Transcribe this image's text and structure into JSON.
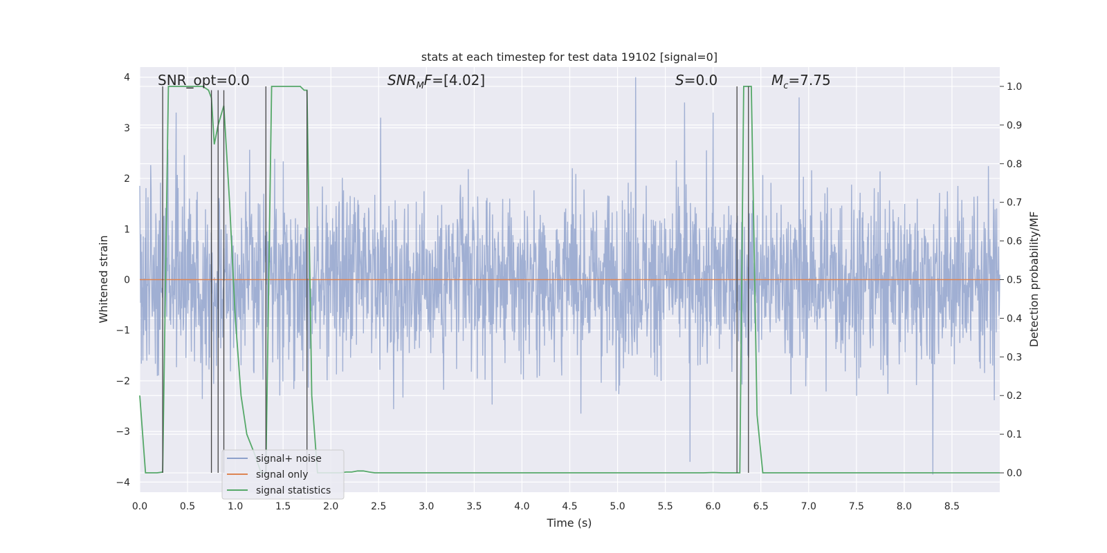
{
  "chart_data": {
    "type": "line",
    "title": "stats at each timestep for test data 19102 [signal=0]",
    "xlabel": "Time (s)",
    "ylabel": "Whitened strain",
    "y2label": "Detection probability/MF",
    "xlim": [
      0.0,
      9.0
    ],
    "ylim": [
      -4.2,
      4.2
    ],
    "y2lim": [
      -0.05,
      1.05
    ],
    "xticks": [
      "0.0",
      "0.5",
      "1.0",
      "1.5",
      "2.0",
      "2.5",
      "3.0",
      "3.5",
      "4.0",
      "4.5",
      "5.0",
      "5.5",
      "6.0",
      "6.5",
      "7.0",
      "7.5",
      "8.0",
      "8.5"
    ],
    "yticks": [
      "4",
      "3",
      "2",
      "1",
      "0",
      "−1",
      "−2",
      "−3",
      "−4"
    ],
    "y2ticks": [
      "1.0",
      "0.9",
      "0.8",
      "0.7",
      "0.6",
      "0.5",
      "0.4",
      "0.3",
      "0.2",
      "0.1",
      "0.0"
    ],
    "annotations": {
      "snr_opt": "SNR_opt=0.0",
      "snr_mf_sym": "SNR",
      "snr_mf_sub": "M",
      "snr_mf_sym2": "F",
      "snr_mf_val": "=[4.02]",
      "s_sym": "S",
      "s_val": "=0.0",
      "mc_sym": "M",
      "mc_sub": "c",
      "mc_val": "=7.75"
    },
    "legend": {
      "placement": "lower-left",
      "entries": [
        "signal+ noise",
        "signal only",
        "signal statistics"
      ]
    },
    "series": [
      {
        "name": "signal+ noise",
        "axis": "left",
        "color": "#8da0cb",
        "style": "noise",
        "amplitude_typical": 1.5,
        "amplitude_max": 4.0,
        "notable_peaks": [
          {
            "x": 0.38,
            "y": 3.3
          },
          {
            "x": 2.52,
            "y": 3.2
          },
          {
            "x": 5.19,
            "y": 4.0
          },
          {
            "x": 5.7,
            "y": 3.5
          },
          {
            "x": 5.76,
            "y": -3.6
          },
          {
            "x": 6.0,
            "y": 3.3
          },
          {
            "x": 6.9,
            "y": 3.6
          },
          {
            "x": 8.3,
            "y": -3.85
          }
        ]
      },
      {
        "name": "signal only",
        "axis": "left",
        "color": "#dd8452",
        "x": [
          0.0,
          9.0
        ],
        "y": [
          0.0,
          0.0
        ]
      },
      {
        "name": "signal statistics",
        "axis": "right",
        "color": "#55a868",
        "x": [
          0.0,
          0.06,
          0.12,
          0.18,
          0.24,
          0.3,
          0.36,
          0.42,
          0.48,
          0.54,
          0.6,
          0.66,
          0.72,
          0.75,
          0.78,
          0.82,
          0.88,
          0.94,
          1.0,
          1.06,
          1.12,
          1.2,
          1.27,
          1.32,
          1.38,
          1.44,
          1.5,
          1.56,
          1.62,
          1.68,
          1.72,
          1.75,
          1.8,
          1.86,
          1.92,
          1.98,
          2.04,
          2.1,
          2.16,
          2.22,
          2.28,
          2.34,
          2.4,
          2.46,
          2.6,
          3.0,
          3.5,
          4.0,
          4.5,
          5.0,
          5.5,
          5.8,
          5.9,
          6.0,
          6.1,
          6.2,
          6.25,
          6.28,
          6.32,
          6.36,
          6.4,
          6.46,
          6.52,
          6.6,
          7.0,
          7.5,
          8.0,
          8.5,
          9.0
        ],
        "y": [
          0.2,
          0.0,
          0.0,
          0.0,
          0.002,
          1.0,
          1.0,
          1.0,
          1.0,
          1.0,
          1.0,
          1.0,
          0.99,
          0.97,
          0.85,
          0.9,
          0.95,
          0.7,
          0.4,
          0.2,
          0.1,
          0.05,
          0.0,
          0.0,
          1.0,
          1.0,
          1.0,
          1.0,
          1.0,
          1.0,
          0.99,
          0.99,
          0.2,
          0.0,
          0.0,
          0.0,
          0.0,
          0.0,
          0.002,
          0.002,
          0.005,
          0.005,
          0.002,
          0.0,
          0.0,
          0.0,
          0.0,
          0.0,
          0.0,
          0.0,
          0.0,
          0.0,
          0.0,
          0.001,
          0.0,
          0.0,
          0.0,
          0.0,
          1.0,
          1.0,
          1.0,
          0.15,
          0.0,
          0.0,
          0.0,
          0.0,
          0.0,
          0.0,
          0.0
        ]
      }
    ],
    "vertical_markers": [
      {
        "x": 0.24,
        "y_top": 1.0,
        "y_bottom": 0.0
      },
      {
        "x": 0.75,
        "y_top": 0.99,
        "y_bottom": 0.0
      },
      {
        "x": 0.82,
        "y_top": 0.99,
        "y_bottom": 0.0
      },
      {
        "x": 0.88,
        "y_top": 0.99,
        "y_bottom": 0.0
      },
      {
        "x": 1.32,
        "y_top": 1.0,
        "y_bottom": 0.0
      },
      {
        "x": 1.75,
        "y_top": 0.99,
        "y_bottom": 0.0
      },
      {
        "x": 6.25,
        "y_top": 1.0,
        "y_bottom": 0.0
      },
      {
        "x": 6.37,
        "y_top": 1.0,
        "y_bottom": 0.0
      }
    ],
    "grid": true,
    "colors": {
      "plot_bg": "#eaeaf2",
      "grid": "#ffffff",
      "marker": "#444444"
    }
  }
}
